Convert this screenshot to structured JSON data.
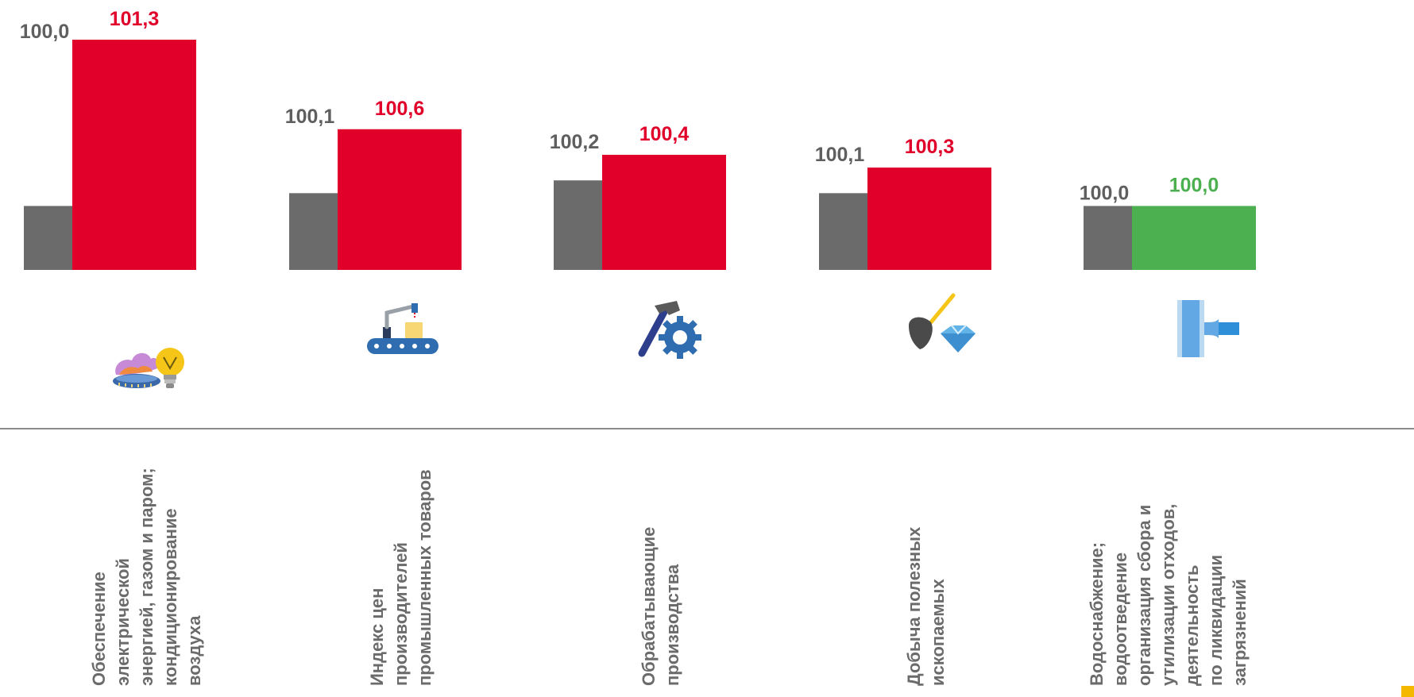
{
  "chart_data": {
    "type": "bar",
    "categories": [
      "Обеспечение\nэлектрической\nэнергией, газом и паром;\nкондиционирование\nвоздуха",
      "Индекс цен\nпроизводителей\nпромышленных товаров",
      "Обрабатывающие\nпроизводства",
      "Добыча полезных\nископаемых",
      "Водоснабжение;\nводоотведение\nорганизация сбора и\nутилизации отходов,\nдеятельность\nпо ликвидации\nзагрязнений"
    ],
    "series": [
      {
        "values": [
          100.0,
          100.1,
          100.2,
          100.1,
          100.0
        ],
        "labels": [
          "100,0",
          "100,1",
          "100,2",
          "100,1",
          "100,0"
        ],
        "color": "#6b6b6b"
      },
      {
        "values": [
          101.3,
          100.6,
          100.4,
          100.3,
          100.0
        ],
        "labels": [
          "101,3",
          "100,6",
          "100,4",
          "100,3",
          "100,0"
        ],
        "colors": [
          "#e0002a",
          "#e0002a",
          "#e0002a",
          "#e0002a",
          "#4caf50"
        ]
      }
    ],
    "colors": {
      "gray_label": "#5f5f5f",
      "red": "#e0002a",
      "green": "#4caf50"
    },
    "icons": [
      "gas-flame-bulb-icon",
      "factory-robot-arm-icon",
      "hammer-gear-icon",
      "shovel-diamond-icon",
      "water-pipe-icon"
    ],
    "grid": false,
    "legend": "none"
  }
}
